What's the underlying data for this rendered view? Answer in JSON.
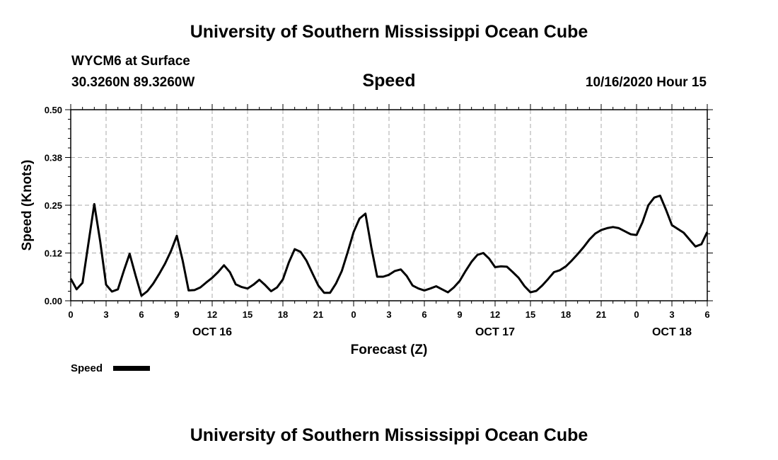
{
  "header": {
    "title": "University of Southern Mississippi Ocean Cube",
    "station": "WYCM6 at Surface",
    "coords": "30.3260N 89.3260W",
    "variable": "Speed",
    "datetime": "10/16/2020 Hour 15"
  },
  "footer": {
    "title": "University of Southern Mississippi Ocean Cube"
  },
  "chart_data": {
    "type": "line",
    "title": "Speed",
    "xlabel": "Forecast (Z)",
    "ylabel": "Speed (Knots)",
    "ylim": [
      0,
      0.5
    ],
    "yticks": [
      0,
      0.125,
      0.25,
      0.375,
      0.5
    ],
    "ytick_labels": [
      "0.00",
      "0.12",
      "0.25",
      "0.38",
      "0.50"
    ],
    "xlim": [
      0,
      54
    ],
    "xticks": [
      0,
      3,
      6,
      9,
      12,
      15,
      18,
      21,
      24,
      27,
      30,
      33,
      36,
      39,
      42,
      45,
      48,
      51,
      54
    ],
    "xtick_labels": [
      "0",
      "3",
      "6",
      "9",
      "12",
      "15",
      "18",
      "21",
      "0",
      "3",
      "6",
      "9",
      "12",
      "15",
      "18",
      "21",
      "0",
      "3",
      "6"
    ],
    "date_labels": [
      {
        "hour": 12,
        "label": "OCT 16"
      },
      {
        "hour": 36,
        "label": "OCT 17"
      },
      {
        "hour": 51,
        "label": "OCT 18"
      }
    ],
    "grid": true,
    "legend": "bottom-left",
    "series": [
      {
        "name": "Speed",
        "color": "#000000",
        "x": [
          0,
          0.5,
          1,
          1.5,
          2,
          2.5,
          3,
          3.5,
          4,
          4.5,
          5,
          5.5,
          6,
          6.5,
          7,
          7.5,
          8,
          8.5,
          9,
          9.5,
          10,
          10.5,
          11,
          11.5,
          12,
          12.5,
          13,
          13.5,
          14,
          14.5,
          15,
          15.5,
          16,
          16.5,
          17,
          17.5,
          18,
          18.5,
          19,
          19.5,
          20,
          20.5,
          21,
          21.5,
          22,
          22.5,
          23,
          23.5,
          24,
          24.5,
          25,
          25.5,
          26,
          26.5,
          27,
          27.5,
          28,
          28.5,
          29,
          29.5,
          30,
          30.5,
          31,
          31.5,
          32,
          32.5,
          33,
          33.5,
          34,
          34.5,
          35,
          35.5,
          36,
          36.5,
          37,
          37.5,
          38,
          38.5,
          39,
          39.5,
          40,
          40.5,
          41,
          41.5,
          42,
          42.5,
          43,
          43.5,
          44,
          44.5,
          45,
          45.5,
          46,
          46.5,
          47,
          47.5,
          48,
          48.5,
          49,
          49.5,
          50,
          50.5,
          51,
          51.5,
          52,
          52.5,
          53,
          53.5,
          54
        ],
        "y": [
          0.058,
          0.03,
          0.047,
          0.15,
          0.253,
          0.155,
          0.042,
          0.024,
          0.03,
          0.078,
          0.123,
          0.066,
          0.013,
          0.025,
          0.045,
          0.07,
          0.097,
          0.13,
          0.17,
          0.105,
          0.027,
          0.028,
          0.035,
          0.048,
          0.06,
          0.075,
          0.093,
          0.075,
          0.043,
          0.036,
          0.032,
          0.042,
          0.055,
          0.041,
          0.025,
          0.035,
          0.056,
          0.1,
          0.135,
          0.128,
          0.105,
          0.072,
          0.04,
          0.021,
          0.021,
          0.045,
          0.078,
          0.128,
          0.18,
          0.215,
          0.228,
          0.14,
          0.063,
          0.063,
          0.068,
          0.078,
          0.082,
          0.065,
          0.04,
          0.032,
          0.027,
          0.032,
          0.038,
          0.03,
          0.022,
          0.035,
          0.052,
          0.078,
          0.102,
          0.12,
          0.125,
          0.11,
          0.088,
          0.09,
          0.089,
          0.075,
          0.06,
          0.038,
          0.022,
          0.026,
          0.04,
          0.057,
          0.075,
          0.08,
          0.09,
          0.105,
          0.122,
          0.14,
          0.16,
          0.176,
          0.185,
          0.19,
          0.193,
          0.19,
          0.182,
          0.174,
          0.172,
          0.205,
          0.25,
          0.27,
          0.275,
          0.238,
          0.198,
          0.188,
          0.178,
          0.16,
          0.142,
          0.148,
          0.18
        ]
      }
    ]
  },
  "legend": {
    "label": "Speed"
  }
}
